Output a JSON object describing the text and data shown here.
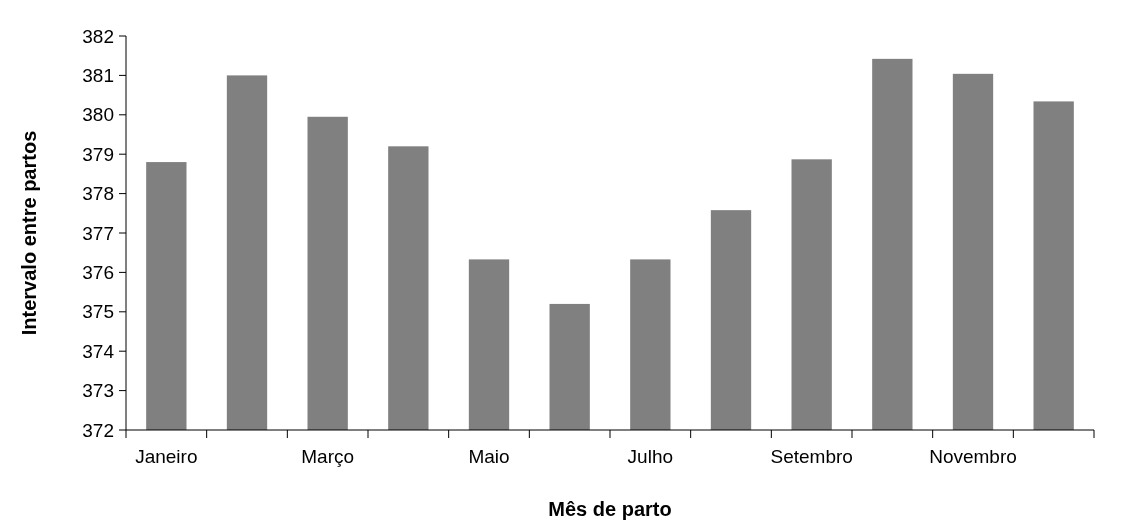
{
  "chart_data": {
    "type": "bar",
    "xlabel": "Mês de parto",
    "ylabel": "Intervalo entre partos",
    "categories": [
      "Janeiro",
      null,
      "Março",
      null,
      "Maio",
      null,
      "Julho",
      null,
      "Setembro",
      null,
      "Novembro",
      null
    ],
    "values": [
      378.8,
      381.0,
      379.95,
      379.2,
      376.33,
      375.2,
      376.33,
      377.58,
      378.87,
      381.42,
      381.04,
      380.34
    ],
    "color": "#808080",
    "ylim": [
      372,
      382
    ],
    "yticks": [
      372,
      373,
      374,
      375,
      376,
      377,
      378,
      379,
      380,
      381,
      382
    ],
    "grid": false
  }
}
